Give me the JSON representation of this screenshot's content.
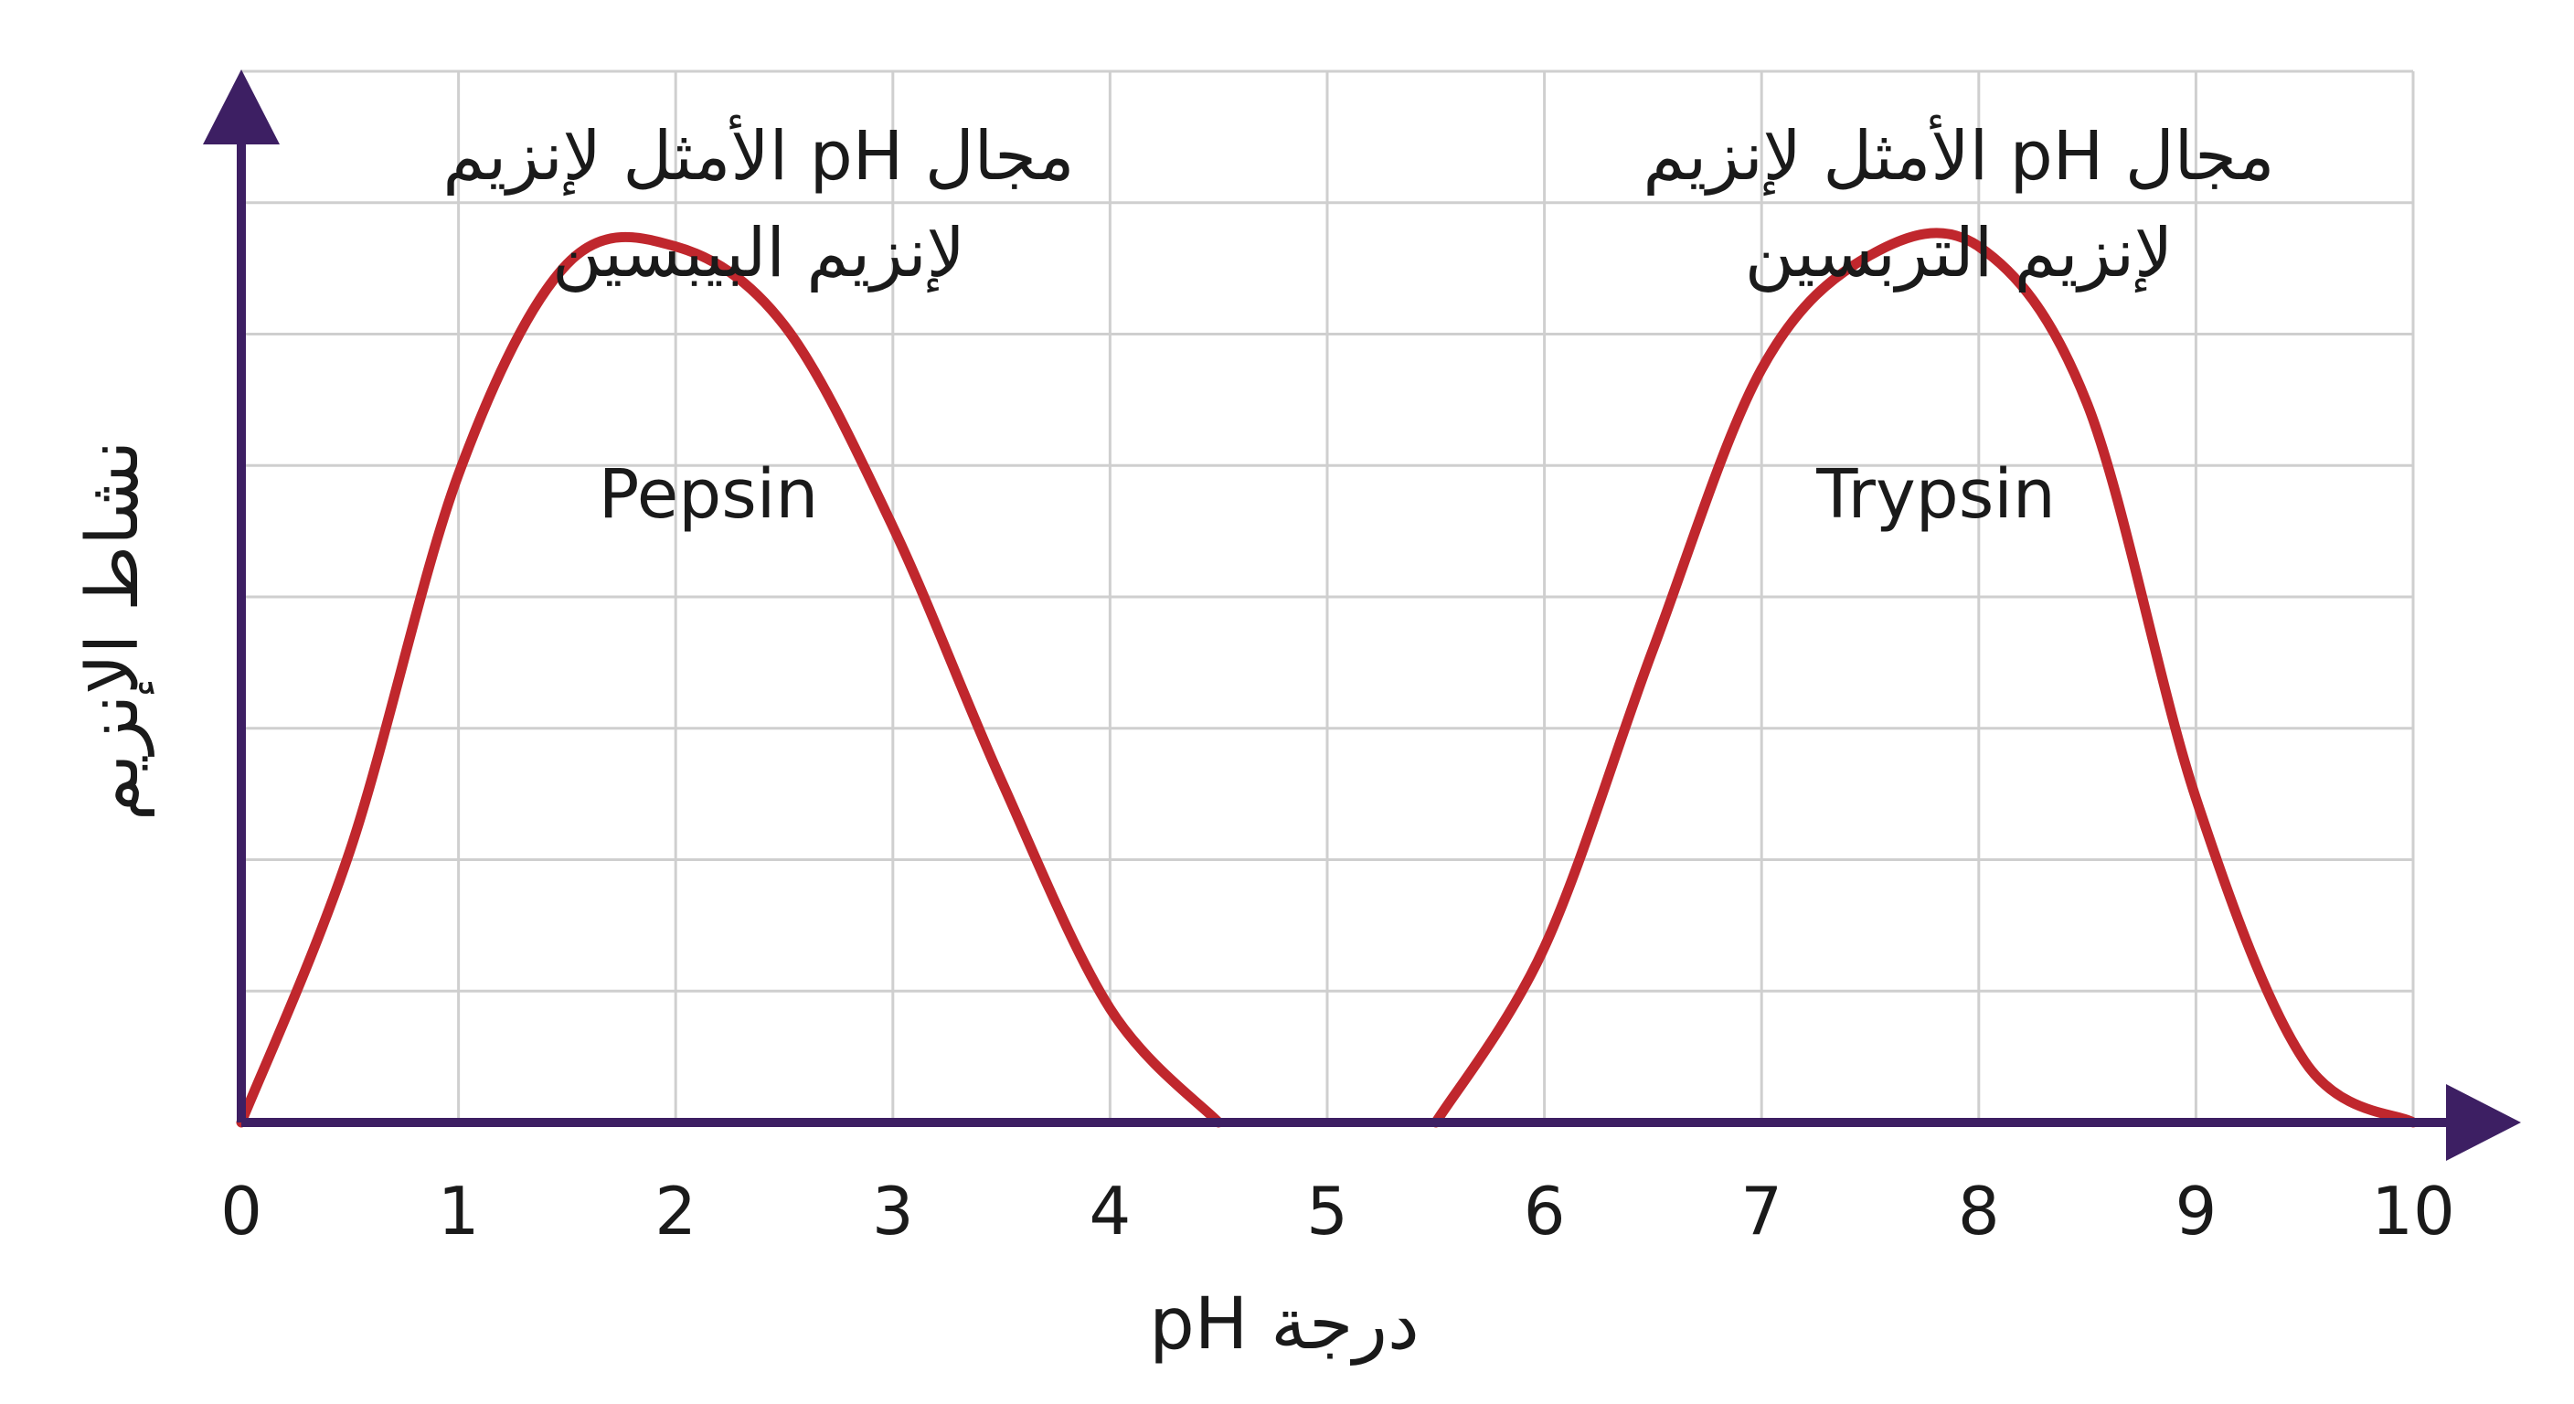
{
  "chart_data": {
    "type": "line",
    "xlabel": "درجة pH",
    "ylabel": "نشاط الإنزيم",
    "xlim": [
      0,
      10
    ],
    "ylim": [
      0,
      1.2
    ],
    "x_ticks": [
      "0",
      "1",
      "2",
      "3",
      "4",
      "5",
      "6",
      "7",
      "8",
      "9",
      "10"
    ],
    "grid": true,
    "colors": {
      "axis": "#3d1f63",
      "curve": "#c0272d",
      "grid": "#cfcfcf"
    },
    "series": [
      {
        "name": "Pepsin",
        "x": [
          0,
          0.5,
          1,
          1.5,
          2,
          2.5,
          3,
          3.5,
          4,
          4.5
        ],
        "y": [
          0,
          0.31,
          0.74,
          0.98,
          1.0,
          0.91,
          0.68,
          0.39,
          0.13,
          0
        ]
      },
      {
        "name": "Trypsin",
        "x": [
          5.5,
          6,
          6.5,
          7,
          7.5,
          8,
          8.5,
          9,
          9.5,
          10
        ],
        "y": [
          0,
          0.2,
          0.54,
          0.86,
          0.99,
          1.0,
          0.82,
          0.37,
          0.07,
          0
        ]
      }
    ],
    "annotations": [
      {
        "lines": [
          "مجال pH الأمثل لإنزيم",
          "لإنزيم البيبسين"
        ]
      },
      {
        "lines": [
          "مجال pH الأمثل لإنزيم",
          "لإنزيم التربسين"
        ]
      }
    ]
  }
}
